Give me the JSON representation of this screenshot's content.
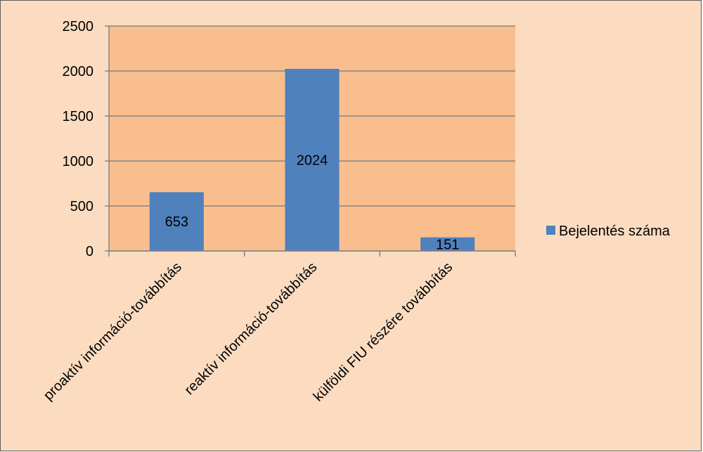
{
  "chart_data": {
    "type": "bar",
    "title": "",
    "xlabel": "",
    "ylabel": "",
    "categories": [
      "proaktív információ-továbbítás",
      "reaktív információ-továbbítás",
      "külföldi FIU részére továbbítás"
    ],
    "series": [
      {
        "name": "Bejelentés száma",
        "values": [
          653,
          2024,
          151
        ],
        "color": "#4f81bd"
      }
    ],
    "data_labels": [
      "653",
      "2024",
      "151"
    ],
    "ylim": [
      0,
      2500
    ],
    "yticks": [
      0,
      500,
      1000,
      1500,
      2000,
      2500
    ],
    "grid": true,
    "legend_position": "right",
    "plot_background": "#f9be8e",
    "frame_background": "#fcdcc0"
  }
}
